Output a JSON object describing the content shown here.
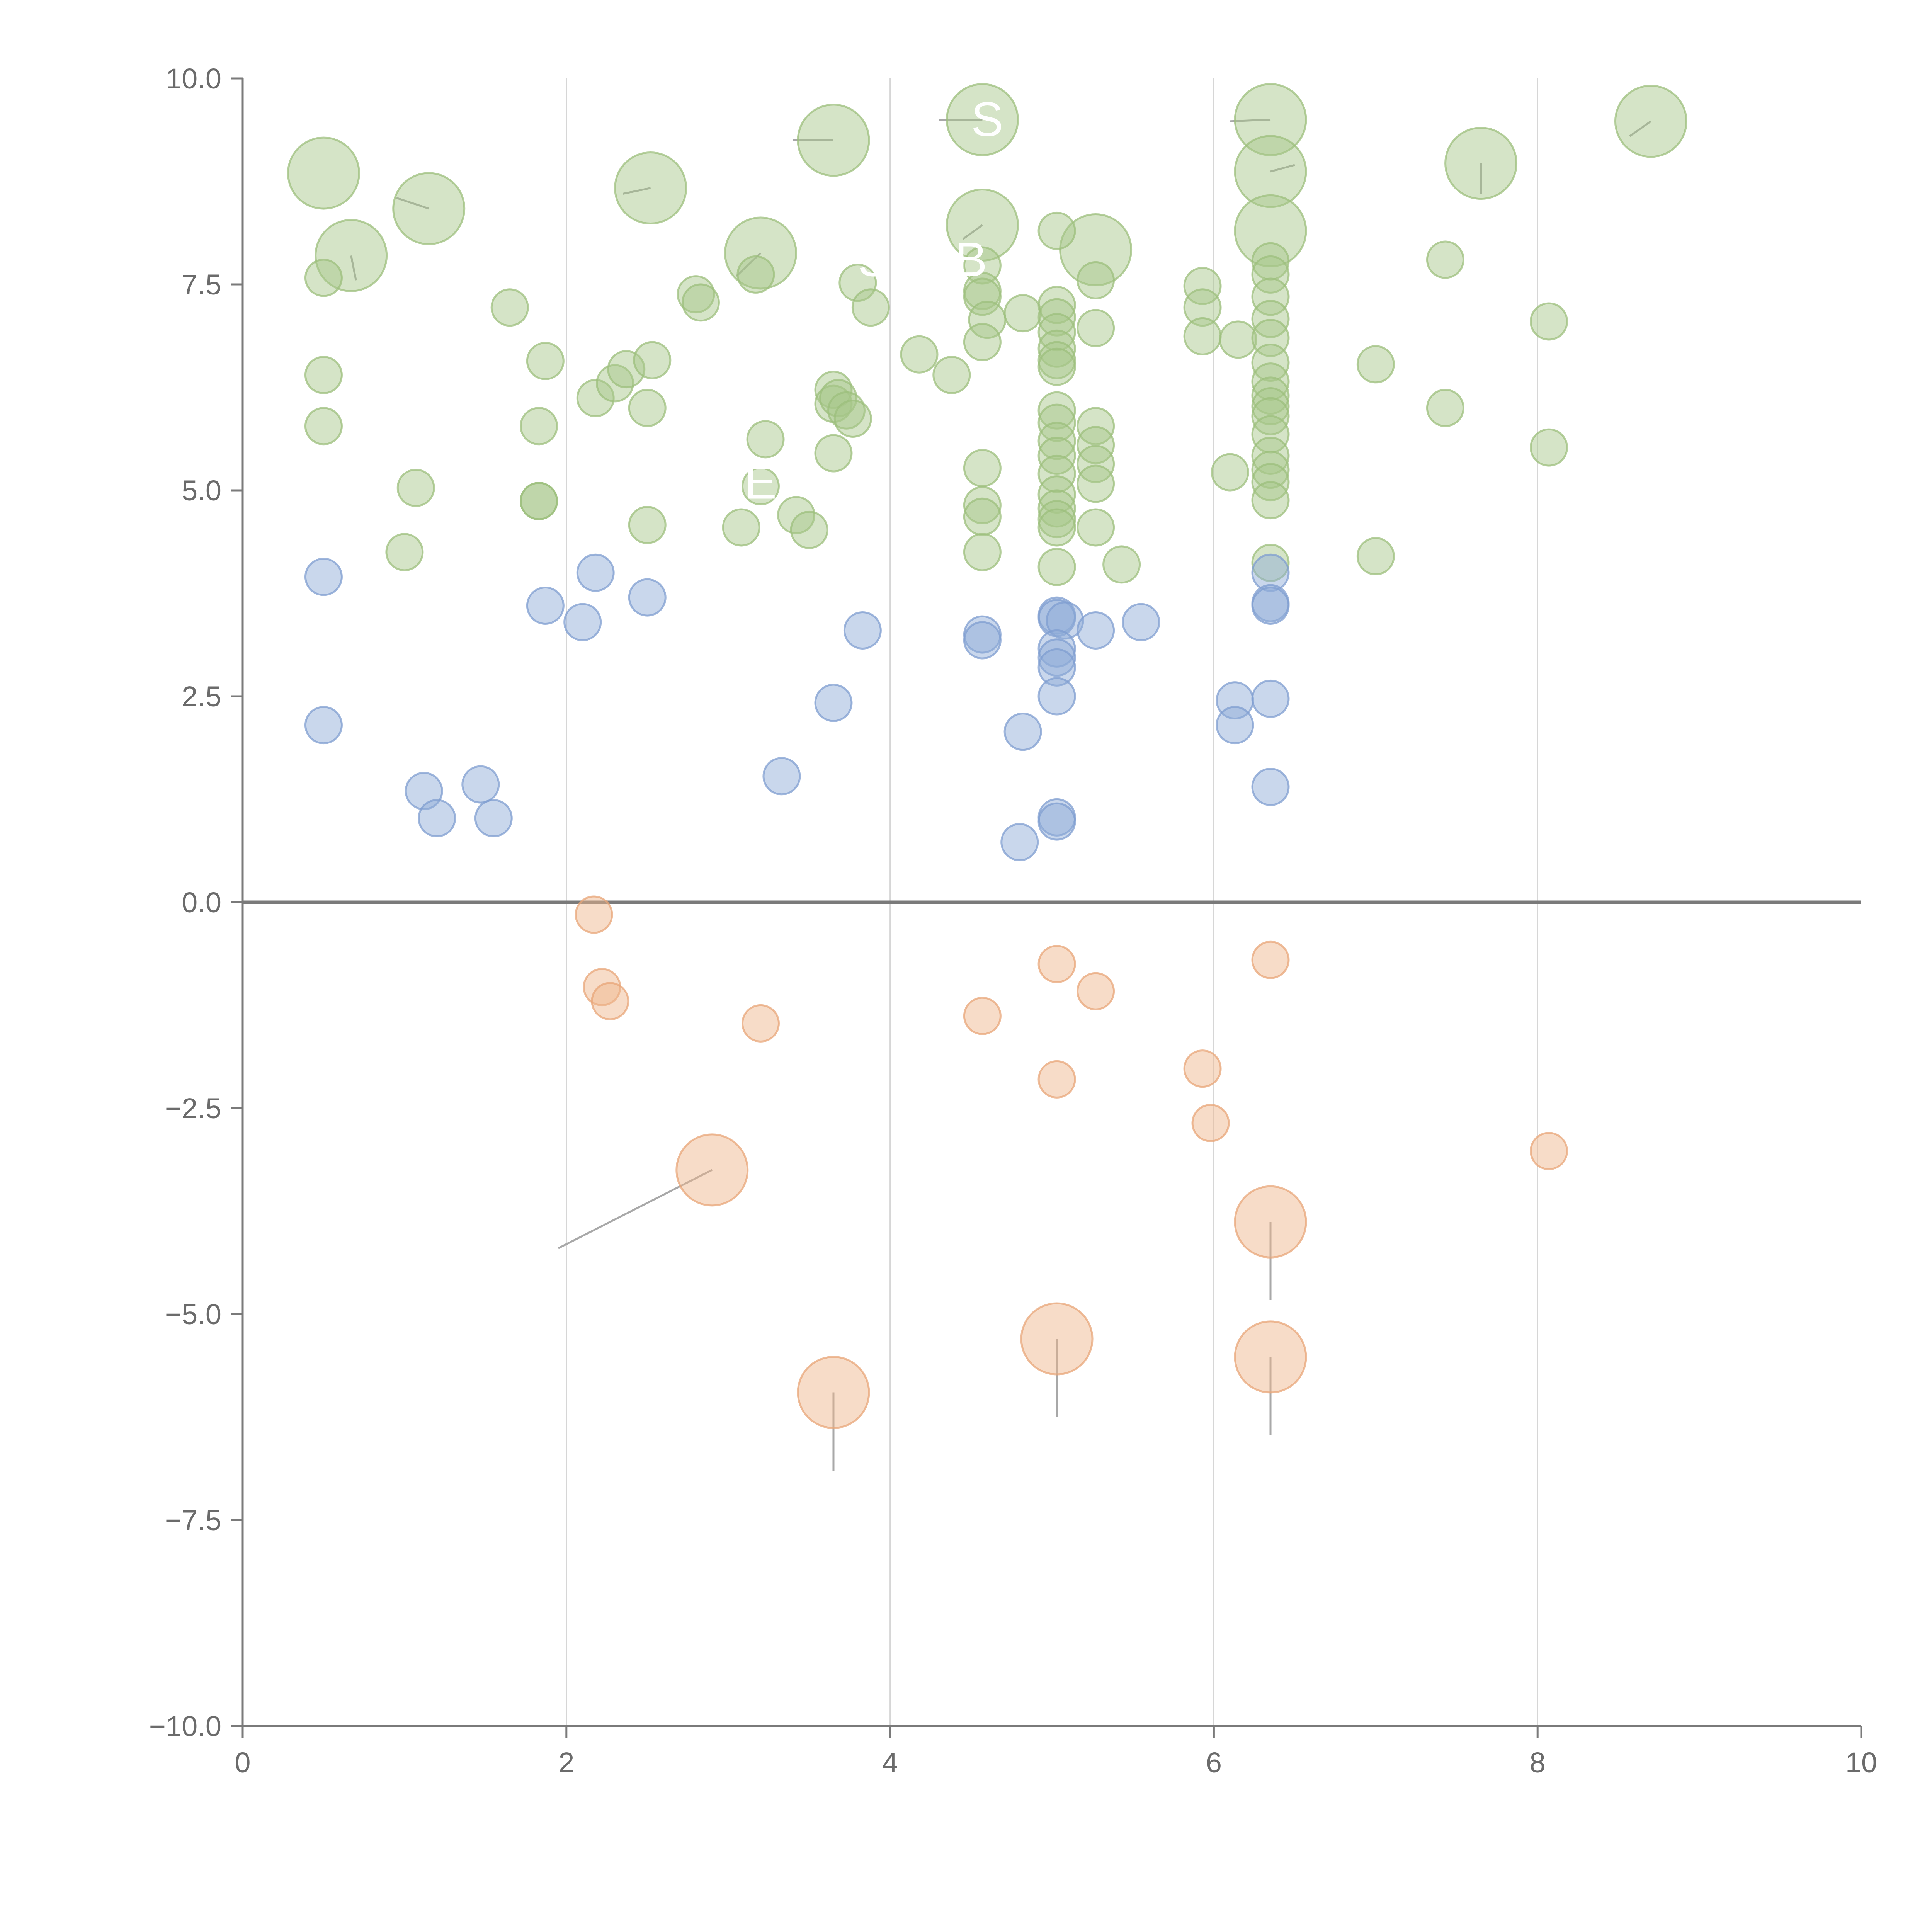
{
  "chart_data": {
    "type": "scatter",
    "title": "",
    "xlabel": "",
    "ylabel": "",
    "xlim": [
      0,
      10
    ],
    "ylim": [
      -10,
      10
    ],
    "x_ticks": [
      0,
      2,
      4,
      6,
      8,
      10
    ],
    "x_tick_labels": [
      "0",
      "2",
      "4",
      "6",
      "8",
      "10"
    ],
    "y_ticks": [
      -10,
      -7.5,
      -5,
      -2.5,
      0,
      2.5,
      5,
      7.5,
      10
    ],
    "y_tick_labels": [
      "−10.0",
      "−7.5",
      "−5.0",
      "−2.5",
      "0.0",
      "2.5",
      "5.0",
      "7.5",
      "10.0"
    ],
    "grid": {
      "vertical": true,
      "horizontal": false
    },
    "zero_line": true,
    "legend": "none",
    "series": [
      {
        "color": "#a8c78a",
        "stroke": "#9cbf7c",
        "points": [
          [
            0.5,
            8.85,
            3
          ],
          [
            0.67,
            7.85,
            3
          ],
          [
            1.15,
            8.42,
            3
          ],
          [
            2.52,
            8.67,
            3
          ],
          [
            3.65,
            9.25,
            3
          ],
          [
            4.57,
            9.5,
            3
          ],
          [
            3.2,
            7.88,
            3
          ],
          [
            4.57,
            8.22,
            3
          ],
          [
            5.27,
            7.92,
            3
          ],
          [
            6.35,
            9.5,
            3
          ],
          [
            6.35,
            8.87,
            3
          ],
          [
            6.35,
            8.15,
            3
          ],
          [
            7.65,
            8.97,
            3
          ],
          [
            8.7,
            9.48,
            3
          ],
          [
            0.5,
            7.58,
            1
          ],
          [
            0.5,
            6.4,
            1
          ],
          [
            0.5,
            5.78,
            1
          ],
          [
            1.0,
            4.25,
            1
          ],
          [
            1.07,
            5.03,
            1
          ],
          [
            1.65,
            7.22,
            1
          ],
          [
            1.83,
            4.87,
            1
          ],
          [
            1.83,
            4.87,
            1
          ],
          [
            1.83,
            5.78,
            1
          ],
          [
            1.87,
            6.57,
            1
          ],
          [
            2.18,
            6.12,
            1
          ],
          [
            2.3,
            6.3,
            1
          ],
          [
            2.37,
            6.47,
            1
          ],
          [
            2.5,
            6.0,
            1
          ],
          [
            2.53,
            6.58,
            1
          ],
          [
            2.5,
            4.58,
            1
          ],
          [
            2.8,
            7.38,
            1
          ],
          [
            2.83,
            7.28,
            1
          ],
          [
            3.08,
            4.55,
            1
          ],
          [
            3.17,
            7.62,
            1
          ],
          [
            3.2,
            5.05,
            1
          ],
          [
            3.23,
            5.62,
            1
          ],
          [
            3.42,
            4.7,
            1
          ],
          [
            3.5,
            4.52,
            1
          ],
          [
            3.65,
            6.22,
            1
          ],
          [
            3.65,
            6.05,
            1
          ],
          [
            3.68,
            6.12,
            1
          ],
          [
            3.73,
            5.97,
            1
          ],
          [
            3.77,
            5.87,
            1
          ],
          [
            3.65,
            5.45,
            1
          ],
          [
            3.8,
            7.52,
            1
          ],
          [
            3.88,
            7.22,
            1
          ],
          [
            4.18,
            6.65,
            1
          ],
          [
            4.38,
            6.4,
            1
          ],
          [
            4.57,
            7.73,
            1
          ],
          [
            4.57,
            7.42,
            1
          ],
          [
            4.57,
            7.35,
            1
          ],
          [
            4.6,
            7.07,
            1
          ],
          [
            4.57,
            6.8,
            1
          ],
          [
            4.57,
            5.27,
            1
          ],
          [
            4.57,
            4.82,
            1
          ],
          [
            4.57,
            4.68,
            1
          ],
          [
            4.57,
            4.25,
            1
          ],
          [
            4.82,
            7.15,
            1
          ],
          [
            5.03,
            8.15,
            1
          ],
          [
            5.03,
            7.25,
            1
          ],
          [
            5.03,
            7.1,
            1
          ],
          [
            5.03,
            6.92,
            1
          ],
          [
            5.03,
            6.72,
            1
          ],
          [
            5.03,
            6.58,
            1
          ],
          [
            5.03,
            6.5,
            1
          ],
          [
            5.03,
            5.97,
            1
          ],
          [
            5.03,
            5.82,
            1
          ],
          [
            5.03,
            5.6,
            1
          ],
          [
            5.03,
            5.42,
            1
          ],
          [
            5.03,
            5.2,
            1
          ],
          [
            5.03,
            4.95,
            1
          ],
          [
            5.03,
            4.78,
            1
          ],
          [
            5.03,
            4.65,
            1
          ],
          [
            5.03,
            4.55,
            1
          ],
          [
            5.03,
            4.07,
            1
          ],
          [
            5.27,
            7.55,
            1
          ],
          [
            5.27,
            6.97,
            1
          ],
          [
            5.27,
            5.78,
            1
          ],
          [
            5.27,
            5.55,
            1
          ],
          [
            5.27,
            5.32,
            1
          ],
          [
            5.27,
            5.08,
            1
          ],
          [
            5.27,
            4.55,
            1
          ],
          [
            5.43,
            4.1,
            1
          ],
          [
            5.93,
            7.48,
            1
          ],
          [
            5.93,
            7.22,
            1
          ],
          [
            5.93,
            6.87,
            1
          ],
          [
            6.1,
            5.22,
            1
          ],
          [
            6.15,
            6.83,
            1
          ],
          [
            6.35,
            7.78,
            1
          ],
          [
            6.35,
            7.62,
            1
          ],
          [
            6.35,
            7.35,
            1
          ],
          [
            6.35,
            7.08,
            1
          ],
          [
            6.35,
            6.85,
            1
          ],
          [
            6.35,
            6.55,
            1
          ],
          [
            6.35,
            6.32,
            1
          ],
          [
            6.35,
            6.15,
            1
          ],
          [
            6.35,
            6.02,
            1
          ],
          [
            6.35,
            5.9,
            1
          ],
          [
            6.35,
            5.68,
            1
          ],
          [
            6.35,
            5.42,
            1
          ],
          [
            6.35,
            5.25,
            1
          ],
          [
            6.35,
            5.1,
            1
          ],
          [
            6.35,
            4.88,
            1
          ],
          [
            6.35,
            4.12,
            1
          ],
          [
            7.0,
            6.53,
            1
          ],
          [
            7.0,
            4.2,
            1
          ],
          [
            7.43,
            7.8,
            1
          ],
          [
            7.43,
            6.0,
            1
          ],
          [
            8.07,
            7.05,
            1
          ],
          [
            8.07,
            5.52,
            1
          ]
        ]
      },
      {
        "color": "#8eabd7",
        "stroke": "#7f9ed0",
        "points": [
          [
            0.5,
            3.95,
            1
          ],
          [
            0.5,
            2.15,
            1
          ],
          [
            1.12,
            1.35,
            1
          ],
          [
            1.2,
            1.02,
            1
          ],
          [
            1.47,
            1.43,
            1
          ],
          [
            1.55,
            1.02,
            1
          ],
          [
            1.87,
            3.6,
            1
          ],
          [
            2.1,
            3.4,
            1
          ],
          [
            2.18,
            4.0,
            1
          ],
          [
            2.5,
            3.7,
            1
          ],
          [
            3.33,
            1.53,
            1
          ],
          [
            3.65,
            2.42,
            1
          ],
          [
            3.83,
            3.3,
            1
          ],
          [
            4.57,
            3.25,
            1
          ],
          [
            4.57,
            3.18,
            1
          ],
          [
            4.82,
            2.07,
            1
          ],
          [
            4.8,
            0.73,
            1
          ],
          [
            5.03,
            3.48,
            1
          ],
          [
            5.03,
            3.45,
            1
          ],
          [
            5.08,
            3.42,
            1
          ],
          [
            5.03,
            3.08,
            1
          ],
          [
            5.03,
            2.97,
            1
          ],
          [
            5.03,
            2.85,
            1
          ],
          [
            5.03,
            2.5,
            1
          ],
          [
            5.03,
            1.03,
            1
          ],
          [
            5.03,
            0.98,
            1
          ],
          [
            5.27,
            3.3,
            1
          ],
          [
            5.55,
            3.4,
            1
          ],
          [
            6.13,
            2.45,
            1
          ],
          [
            6.13,
            2.15,
            1
          ],
          [
            6.35,
            4.0,
            1
          ],
          [
            6.35,
            3.63,
            1
          ],
          [
            6.35,
            3.6,
            1
          ],
          [
            6.35,
            2.47,
            1
          ],
          [
            6.35,
            1.4,
            1
          ]
        ]
      },
      {
        "color": "#efb68d",
        "stroke": "#e8a578",
        "points": [
          [
            2.17,
            -0.15,
            1
          ],
          [
            2.22,
            -1.03,
            1
          ],
          [
            2.27,
            -1.2,
            1
          ],
          [
            3.2,
            -1.47,
            1
          ],
          [
            4.57,
            -1.38,
            1
          ],
          [
            5.03,
            -0.75,
            1
          ],
          [
            5.03,
            -2.15,
            1
          ],
          [
            5.27,
            -1.08,
            1
          ],
          [
            5.93,
            -2.02,
            1
          ],
          [
            5.98,
            -2.68,
            1
          ],
          [
            6.35,
            -0.7,
            1
          ],
          [
            8.07,
            -3.02,
            1
          ],
          [
            2.9,
            -3.25,
            3
          ],
          [
            3.65,
            -5.95,
            3
          ],
          [
            5.03,
            -5.3,
            3
          ],
          [
            6.35,
            -3.88,
            3
          ],
          [
            6.35,
            -5.52,
            3
          ]
        ]
      }
    ],
    "labels": [
      {
        "text": "S",
        "x": 4.6,
        "y": 9.3
      },
      {
        "text": "S",
        "x": 3.9,
        "y": 7.6
      },
      {
        "text": "B",
        "x": 4.5,
        "y": 7.6
      },
      {
        "text": "E",
        "x": 3.2,
        "y": 4.9
      }
    ],
    "leaders": [
      {
        "from": [
          2.9,
          -3.25
        ],
        "to": [
          1.95,
          -4.2
        ]
      },
      {
        "from": [
          3.65,
          -5.95
        ],
        "to": [
          3.65,
          -6.9
        ]
      },
      {
        "from": [
          5.03,
          -5.3
        ],
        "to": [
          5.03,
          -6.25
        ]
      },
      {
        "from": [
          6.35,
          -3.88
        ],
        "to": [
          6.35,
          -4.83
        ]
      },
      {
        "from": [
          6.35,
          -5.52
        ],
        "to": [
          6.35,
          -6.47
        ]
      },
      {
        "from": [
          1.15,
          8.42
        ],
        "to": [
          0.95,
          8.55
        ]
      },
      {
        "from": [
          2.52,
          8.67
        ],
        "to": [
          2.35,
          8.6
        ]
      },
      {
        "from": [
          3.65,
          9.25
        ],
        "to": [
          3.4,
          9.25
        ]
      },
      {
        "from": [
          4.57,
          9.5
        ],
        "to": [
          4.3,
          9.5
        ]
      },
      {
        "from": [
          6.35,
          9.5
        ],
        "to": [
          6.1,
          9.48
        ]
      },
      {
        "from": [
          6.35,
          8.87
        ],
        "to": [
          6.5,
          8.95
        ]
      },
      {
        "from": [
          7.65,
          8.97
        ],
        "to": [
          7.65,
          8.6
        ]
      },
      {
        "from": [
          8.7,
          9.48
        ],
        "to": [
          8.57,
          9.3
        ]
      },
      {
        "from": [
          4.57,
          8.22
        ],
        "to": [
          4.45,
          8.05
        ]
      },
      {
        "from": [
          0.67,
          7.85
        ],
        "to": [
          0.7,
          7.55
        ]
      },
      {
        "from": [
          3.2,
          7.88
        ],
        "to": [
          3.05,
          7.6
        ]
      }
    ]
  }
}
